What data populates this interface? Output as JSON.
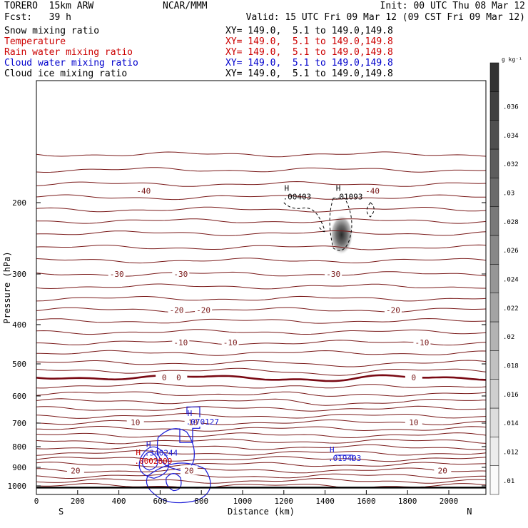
{
  "header": {
    "model": "TORERO  15km ARW",
    "center": "NCAR/MMM",
    "init": "Init: 00 UTC Thu 08 Mar 12",
    "fcst": "Fcst:   39 h",
    "valid": "Valid: 15 UTC Fri 09 Mar 12 (09 CST Fri 09 Mar 12)",
    "fields": [
      {
        "name": "Snow mixing ratio",
        "xy": "XY= 149.0,  5.1 to 149.0,149.8",
        "color": "#000000"
      },
      {
        "name": "Temperature",
        "xy": "XY= 149.0,  5.1 to 149.0,149.8",
        "color": "#cc0000"
      },
      {
        "name": "Rain water mixing ratio",
        "xy": "XY= 149.0,  5.1 to 149.0,149.8",
        "color": "#cc0000"
      },
      {
        "name": "Cloud water mixing ratio",
        "xy": "XY= 149.0,  5.1 to 149.0,149.8",
        "color": "#0000cc"
      },
      {
        "name": "Cloud ice mixing ratio",
        "xy": "XY= 149.0,  5.1 to 149.0,149.8",
        "color": "#000000"
      }
    ]
  },
  "chart_data": {
    "type": "contour",
    "xlabel": "Distance (km)",
    "ylabel": "Pressure (hPa)",
    "xlim": [
      0,
      2180
    ],
    "ylim": [
      1050,
      100
    ],
    "xticks": [
      0,
      200,
      400,
      600,
      800,
      1000,
      1200,
      1400,
      1600,
      1800,
      2000
    ],
    "yticks": [
      200,
      300,
      400,
      500,
      600,
      700,
      800,
      900,
      1000
    ],
    "endpoint_labels": {
      "left": "S",
      "right": "N"
    },
    "colorbar": {
      "unit": "g kg⁻¹",
      "ticks": [
        ".01",
        ".012",
        ".014",
        ".016",
        ".018",
        ".02",
        ".022",
        ".024",
        ".026",
        ".028",
        ".03",
        ".032",
        ".034",
        ".036"
      ]
    },
    "temperature_contours": [
      {
        "label": "-40",
        "p": 187,
        "labels_at": [
          520,
          1630
        ]
      },
      {
        "label": "-30",
        "p": 300,
        "labels_at": [
          390,
          700,
          1440
        ]
      },
      {
        "label": "-20",
        "p": 368,
        "labels_at": [
          680,
          810,
          1730
        ]
      },
      {
        "label": "-10",
        "p": 443,
        "labels_at": [
          700,
          940,
          1870
        ]
      },
      {
        "label": "0",
        "p": 540,
        "labels_at": [
          620,
          690,
          1830
        ]
      },
      {
        "label": "10",
        "p": 697,
        "labels_at": [
          480,
          760,
          1830
        ]
      },
      {
        "label": "20",
        "p": 916,
        "labels_at": [
          190,
          740,
          1970
        ]
      }
    ],
    "temperature_contour_levels": [
      152,
      166,
      180,
      194,
      208,
      222,
      238,
      258,
      278,
      300,
      322,
      345,
      368,
      392,
      417,
      443,
      470,
      497,
      520,
      540,
      566,
      592,
      618,
      645,
      672,
      697,
      723,
      750,
      776,
      803,
      830,
      858,
      886,
      916,
      945,
      972,
      1000
    ],
    "maxima": [
      {
        "field": "Snow mixing ratio",
        "label": "H",
        "value": ".00403",
        "x": 1230,
        "p": 195
      },
      {
        "field": "Cloud ice mixing ratio",
        "label": "H",
        "value": ".01093",
        "x": 1480,
        "p": 195
      },
      {
        "field": "Cloud water mixing ratio",
        "label": "H",
        "value": ".070127",
        "x": 760,
        "p": 700
      },
      {
        "field": "Cloud water mixing ratio",
        "label": "H",
        "value": ".340244",
        "x": 560,
        "p": 835
      },
      {
        "field": "Rain water mixing ratio",
        "label": "H",
        "value": ".0002809",
        "x": 510,
        "p": 875
      },
      {
        "field": "Cloud water mixing ratio",
        "label": "H",
        "value": ".019403",
        "x": 1450,
        "p": 860
      }
    ]
  }
}
